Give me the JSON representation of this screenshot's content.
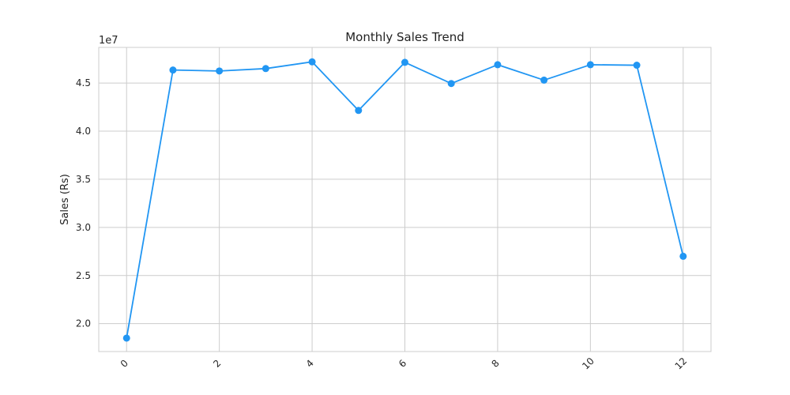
{
  "chart_data": {
    "type": "line",
    "title": "Monthly Sales Trend",
    "xlabel": "",
    "ylabel": "Sales (Rs)",
    "y_scale_label": "1e7",
    "y_scale": 10000000,
    "xlim": [
      -0.6,
      12.6
    ],
    "ylim": [
      17100000,
      48700000
    ],
    "xticks": [
      0,
      2,
      4,
      6,
      8,
      10,
      12
    ],
    "xtick_labels": [
      "0",
      "2",
      "4",
      "6",
      "8",
      "10",
      "12"
    ],
    "yticks": [
      20000000,
      25000000,
      30000000,
      35000000,
      40000000,
      45000000
    ],
    "ytick_labels": [
      "2.0",
      "2.5",
      "3.0",
      "3.5",
      "4.0",
      "4.5"
    ],
    "grid": true,
    "color": "#2196f3",
    "series": [
      {
        "x": [
          0,
          1,
          2,
          3,
          4,
          5,
          6,
          7,
          8,
          9,
          10,
          11,
          12
        ],
        "values": [
          18500000,
          46350000,
          46250000,
          46500000,
          47200000,
          42150000,
          47150000,
          44950000,
          46900000,
          45300000,
          46900000,
          46850000,
          27000000
        ]
      }
    ]
  }
}
